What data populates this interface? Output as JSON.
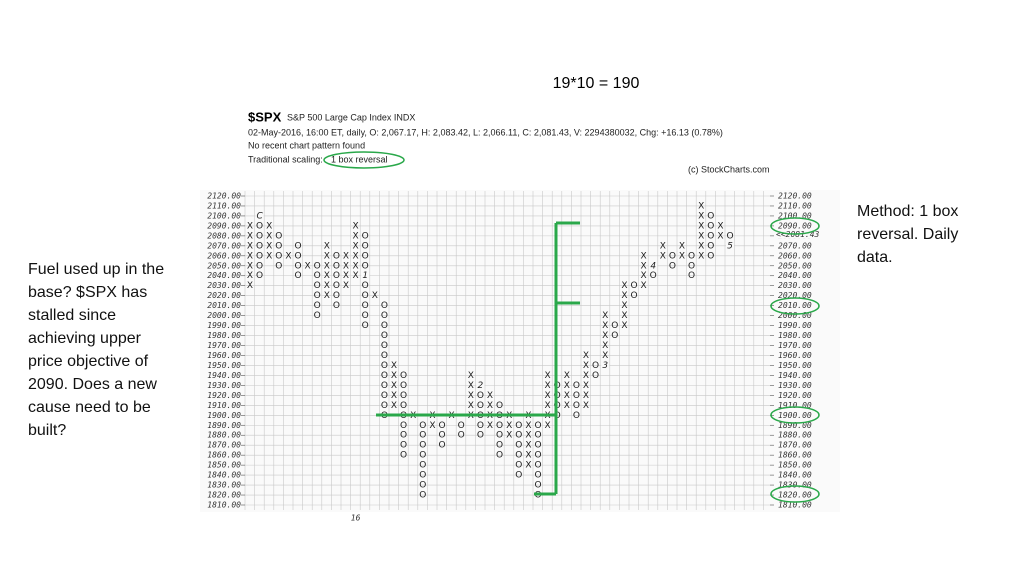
{
  "slide": {
    "title": "19*10 = 190",
    "left_note": [
      "Fuel used up in the",
      "base? $SPX has",
      "stalled since",
      "achieving upper",
      "price objective of",
      "2090. Does a new",
      "cause need to be",
      "built?"
    ],
    "right_note": [
      "Method: 1 box",
      "reversal. Daily",
      "data."
    ]
  },
  "chart_data": {
    "type": "point-and-figure",
    "symbol": "$SPX",
    "index_name": "S&P 500 Large Cap Index  INDX",
    "quote": "02-May-2016, 16:00 ET, daily, O: 2,067.17, H: 2,083.42, L: 2,066.11, C: 2,081.43, V: 2294380032, Chg: +16.13 (0.78%)",
    "pattern": "No recent chart pattern found",
    "scaling_label": "Traditional scaling:",
    "scaling": "1 box reversal",
    "source": "(c) StockCharts.com",
    "box_size": 10,
    "ylim": [
      1810,
      2120
    ],
    "yticks": [
      {
        "value": 1810,
        "label": "1810.00"
      },
      {
        "value": 1820,
        "label": "1820.00"
      },
      {
        "value": 1830,
        "label": "1830.00"
      },
      {
        "value": 1840,
        "label": "1840.00"
      },
      {
        "value": 1850,
        "label": "1850.00"
      },
      {
        "value": 1860,
        "label": "1860.00"
      },
      {
        "value": 1870,
        "label": "1870.00"
      },
      {
        "value": 1880,
        "label": "1880.00"
      },
      {
        "value": 1890,
        "label": "1890.00"
      },
      {
        "value": 1900,
        "label": "1900.00"
      },
      {
        "value": 1910,
        "label": "1910.00"
      },
      {
        "value": 1920,
        "label": "1920.00"
      },
      {
        "value": 1930,
        "label": "1930.00"
      },
      {
        "value": 1940,
        "label": "1940.00"
      },
      {
        "value": 1950,
        "label": "1950.00"
      },
      {
        "value": 1960,
        "label": "1960.00"
      },
      {
        "value": 1970,
        "label": "1970.00"
      },
      {
        "value": 1980,
        "label": "1980.00"
      },
      {
        "value": 1990,
        "label": "1990.00"
      },
      {
        "value": 2000,
        "label": "2000.00"
      },
      {
        "value": 2010,
        "label": "2010.00"
      },
      {
        "value": 2020,
        "label": "2020.00"
      },
      {
        "value": 2030,
        "label": "2030.00"
      },
      {
        "value": 2040,
        "label": "2040.00"
      },
      {
        "value": 2050,
        "label": "2050.00"
      },
      {
        "value": 2060,
        "label": "2060.00"
      },
      {
        "value": 2070,
        "label": "2070.00"
      },
      {
        "value": 2080,
        "label": "2080.00"
      },
      {
        "value": 2090,
        "label": "2090.00"
      },
      {
        "value": 2100,
        "label": "2100.00"
      },
      {
        "value": 2110,
        "label": "2110.00"
      },
      {
        "value": 2120,
        "label": "2120.00"
      }
    ],
    "grid": true,
    "last_price": {
      "value": 2081.43,
      "label": "<<2081.43",
      "color": "#c00000"
    },
    "x_label": {
      "column": 11,
      "label": "16"
    },
    "color": "#222222",
    "columns": [
      {
        "type": "X",
        "low": 2030,
        "high": 2090
      },
      {
        "type": "O",
        "low": 2040,
        "high": 2090
      },
      {
        "type": "X",
        "low": 2060,
        "high": 2090
      },
      {
        "type": "O",
        "low": 2050,
        "high": 2080
      },
      {
        "type": "X",
        "low": 2060,
        "high": 2060
      },
      {
        "type": "O",
        "low": 2040,
        "high": 2070
      },
      {
        "type": "X",
        "low": 2050,
        "high": 2050
      },
      {
        "type": "O",
        "low": 2000,
        "high": 2050
      },
      {
        "type": "X",
        "low": 2020,
        "high": 2070
      },
      {
        "type": "O",
        "low": 2010,
        "high": 2060
      },
      {
        "type": "X",
        "low": 2030,
        "high": 2060
      },
      {
        "type": "X",
        "low": 2040,
        "high": 2090
      },
      {
        "type": "O",
        "low": 1990,
        "high": 2080
      },
      {
        "type": "X",
        "low": 2020,
        "high": 2020
      },
      {
        "type": "O",
        "low": 1900,
        "high": 2010
      },
      {
        "type": "X",
        "low": 1910,
        "high": 1950
      },
      {
        "type": "O",
        "low": 1860,
        "high": 1940
      },
      {
        "type": "X",
        "low": 1900,
        "high": 1900
      },
      {
        "type": "O",
        "low": 1820,
        "high": 1890
      },
      {
        "type": "X",
        "low": 1890,
        "high": 1900
      },
      {
        "type": "O",
        "low": 1870,
        "high": 1890
      },
      {
        "type": "X",
        "low": 1900,
        "high": 1900
      },
      {
        "type": "O",
        "low": 1880,
        "high": 1890
      },
      {
        "type": "X",
        "low": 1900,
        "high": 1940
      },
      {
        "type": "O",
        "low": 1880,
        "high": 1930
      },
      {
        "type": "X",
        "low": 1890,
        "high": 1920
      },
      {
        "type": "O",
        "low": 1860,
        "high": 1910
      },
      {
        "type": "X",
        "low": 1880,
        "high": 1900
      },
      {
        "type": "O",
        "low": 1840,
        "high": 1890
      },
      {
        "type": "X",
        "low": 1850,
        "high": 1900
      },
      {
        "type": "O",
        "low": 1820,
        "high": 1890
      },
      {
        "type": "X",
        "low": 1890,
        "high": 1940
      },
      {
        "type": "O",
        "low": 1900,
        "high": 1930
      },
      {
        "type": "X",
        "low": 1910,
        "high": 1940
      },
      {
        "type": "O",
        "low": 1900,
        "high": 1930
      },
      {
        "type": "X",
        "low": 1910,
        "high": 1960
      },
      {
        "type": "O",
        "low": 1940,
        "high": 1950
      },
      {
        "type": "X",
        "low": 1950,
        "high": 2000
      },
      {
        "type": "O",
        "low": 1980,
        "high": 1990
      },
      {
        "type": "X",
        "low": 1990,
        "high": 2030
      },
      {
        "type": "O",
        "low": 2020,
        "high": 2030
      },
      {
        "type": "X",
        "low": 2030,
        "high": 2060
      },
      {
        "type": "O",
        "low": 2040,
        "high": 2050
      },
      {
        "type": "X",
        "low": 2060,
        "high": 2070
      },
      {
        "type": "O",
        "low": 2050,
        "high": 2060
      },
      {
        "type": "X",
        "low": 2060,
        "high": 2070
      },
      {
        "type": "O",
        "low": 2040,
        "high": 2060
      },
      {
        "type": "X",
        "low": 2060,
        "high": 2110
      },
      {
        "type": "O",
        "low": 2060,
        "high": 2100
      },
      {
        "type": "X",
        "low": 2080,
        "high": 2090,
        "color": "#2aa84a"
      },
      {
        "type": "O",
        "low": 2070,
        "high": 2080
      }
    ],
    "month_markers": [
      {
        "label": "C",
        "column": 1,
        "price": 2100,
        "color": "#c00000"
      },
      {
        "label": "1",
        "column": 12,
        "price": 2040,
        "color": "#c00000"
      },
      {
        "label": "2",
        "column": 24,
        "price": 1930,
        "color": "#c00000"
      },
      {
        "label": "3",
        "column": 37,
        "price": 1950,
        "color": "#c00000"
      },
      {
        "label": "4",
        "column": 42,
        "price": 2050,
        "color": "#c00000"
      },
      {
        "label": "5",
        "column": 50,
        "price": 2070,
        "color": "#2aa84a"
      }
    ]
  }
}
